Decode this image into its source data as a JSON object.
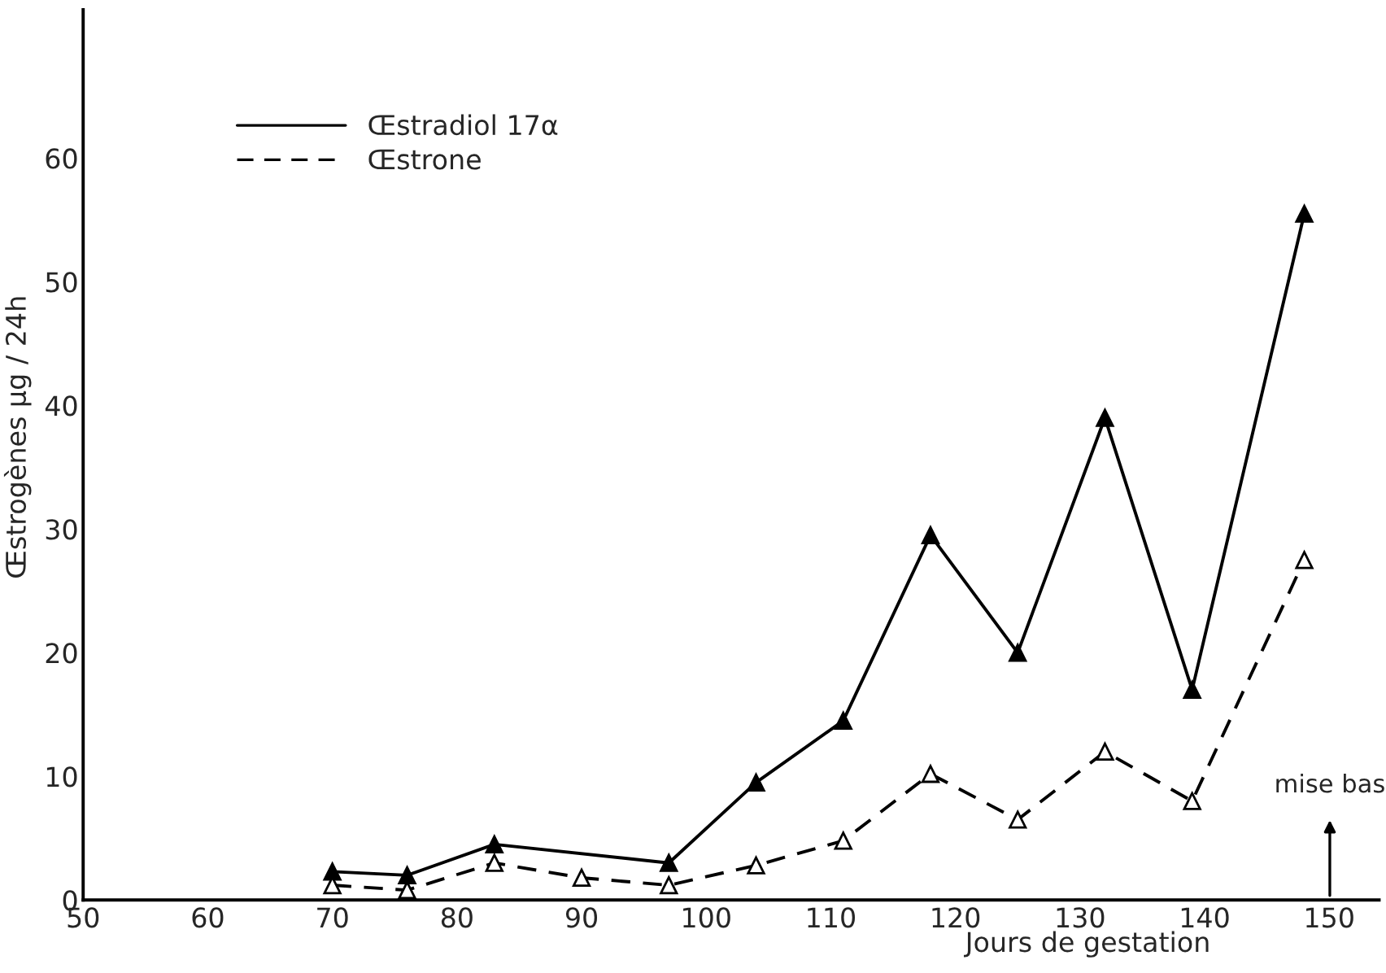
{
  "chart_data": {
    "type": "line",
    "xlabel": "Jours de gestation",
    "ylabel": "Œstrogènes µg / 24h",
    "series": [
      {
        "name": "Œstradiol 17α",
        "color": "#000000",
        "line_style": "solid",
        "marker": "triangle",
        "x": [
          70,
          76,
          83,
          97,
          104,
          111,
          118,
          125,
          132,
          139,
          148
        ],
        "values": [
          2.3,
          2,
          4.5,
          3,
          9.5,
          14.5,
          29.5,
          20,
          39,
          17,
          55.5
        ]
      },
      {
        "name": "Œstrone",
        "color": "#000000",
        "line_style": "dashed",
        "marker": "triangle",
        "x": [
          70,
          76,
          83,
          90,
          97,
          104,
          111,
          118,
          125,
          132,
          139,
          148
        ],
        "values": [
          1.2,
          0.8,
          3,
          1.8,
          1.2,
          2.8,
          4.8,
          10.2,
          6.5,
          12,
          8,
          27.5
        ]
      }
    ],
    "annotations": [
      "mise bas"
    ],
    "xlim": [
      50,
      154
    ],
    "ylim": [
      0,
      72
    ],
    "xticks": [
      50,
      60,
      70,
      80,
      90,
      100,
      110,
      120,
      130,
      140,
      150
    ],
    "yticks": [
      0,
      10,
      20,
      30,
      40,
      50,
      60
    ],
    "grid": false,
    "legend": "top left"
  }
}
